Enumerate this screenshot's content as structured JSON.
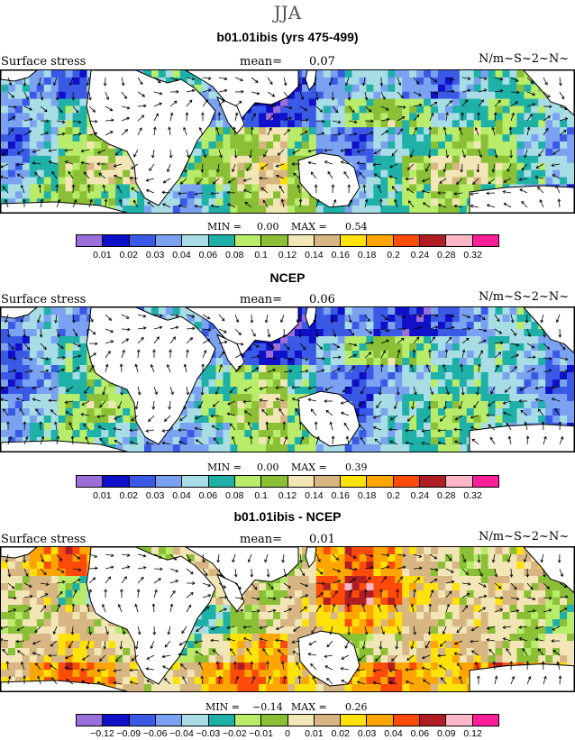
{
  "title": "JJA",
  "colorbar_colors": [
    "#9b6fd9",
    "#1010c8",
    "#3a5ae6",
    "#7aa2f0",
    "#a8dde6",
    "#1fb1a8",
    "#b8ec6a",
    "#8abf36",
    "#f2e6b6",
    "#d8b684",
    "#ffe20a",
    "#ffa500",
    "#ff4b0a",
    "#b01e24",
    "#ffb6c6",
    "#ff1e9a"
  ],
  "panels": [
    {
      "title": "b01.01ibis (yrs 475-499)",
      "left_label": "Surface stress",
      "mean_label": "mean=",
      "mean_value": "0.07",
      "units": "N/m~S~2~N~",
      "min_label": "MIN =",
      "min_value": "0.00",
      "max_label": "MAX =",
      "max_value": "0.54",
      "colorbar_ticks": [
        "0.01",
        "0.02",
        "0.03",
        "0.04",
        "0.06",
        "0.08",
        "0.1",
        "0.12",
        "0.14",
        "0.16",
        "0.18",
        "0.2",
        "0.24",
        "0.28",
        "0.32"
      ],
      "field_levels": [
        [
          4,
          3,
          2,
          3,
          4,
          5,
          5,
          4,
          2,
          1,
          2,
          3,
          4,
          4,
          3,
          2,
          4,
          5,
          6,
          5
        ],
        [
          3,
          4,
          5,
          6,
          7,
          6,
          5,
          3,
          2,
          1,
          2,
          4,
          6,
          7,
          6,
          4,
          5,
          6,
          5,
          4
        ],
        [
          2,
          4,
          6,
          7,
          6,
          4,
          4,
          6,
          7,
          8,
          6,
          3,
          2,
          4,
          5,
          6,
          7,
          6,
          4,
          3
        ],
        [
          3,
          5,
          7,
          8,
          8,
          6,
          6,
          7,
          8,
          9,
          7,
          4,
          3,
          5,
          7,
          8,
          8,
          7,
          5,
          4
        ],
        [
          4,
          6,
          7,
          6,
          5,
          4,
          3,
          5,
          7,
          8,
          7,
          5,
          4,
          5,
          6,
          7,
          6,
          5,
          3,
          2
        ]
      ]
    },
    {
      "title": "NCEP",
      "left_label": "Surface stress",
      "mean_label": "mean=",
      "mean_value": "0.06",
      "units": "N/m~S~2~N~",
      "min_label": "MIN =",
      "min_value": "0.00",
      "max_label": "MAX =",
      "max_value": "0.39",
      "colorbar_ticks": [
        "0.01",
        "0.02",
        "0.03",
        "0.04",
        "0.06",
        "0.08",
        "0.1",
        "0.12",
        "0.14",
        "0.16",
        "0.18",
        "0.2",
        "0.24",
        "0.28",
        "0.32"
      ],
      "field_levels": [
        [
          3,
          4,
          3,
          2,
          3,
          4,
          4,
          3,
          2,
          1,
          1,
          2,
          3,
          2,
          1,
          2,
          3,
          4,
          5,
          4
        ],
        [
          2,
          4,
          5,
          6,
          5,
          4,
          4,
          3,
          2,
          1,
          2,
          4,
          6,
          7,
          6,
          4,
          4,
          5,
          4,
          3
        ],
        [
          2,
          3,
          5,
          6,
          5,
          3,
          3,
          5,
          6,
          7,
          5,
          3,
          2,
          3,
          4,
          5,
          5,
          4,
          3,
          2
        ],
        [
          3,
          4,
          6,
          7,
          6,
          4,
          4,
          6,
          7,
          8,
          6,
          3,
          2,
          4,
          5,
          6,
          6,
          5,
          4,
          3
        ],
        [
          3,
          5,
          6,
          5,
          4,
          3,
          3,
          4,
          6,
          7,
          6,
          4,
          3,
          4,
          5,
          6,
          5,
          4,
          3,
          2
        ]
      ]
    },
    {
      "title": "b01.01ibis - NCEP",
      "left_label": "Surface stress",
      "mean_label": "mean=",
      "mean_value": "0.01",
      "units": "N/m~S~2~N~",
      "min_label": "MIN =",
      "min_value": "−0.14",
      "max_label": "MAX =",
      "max_value": "0.26",
      "colorbar_ticks": [
        "−0.12",
        "−0.09",
        "−0.06",
        "−0.04",
        "−0.03",
        "−0.02",
        "−0.01",
        "0",
        "0.01",
        "0.02",
        "0.03",
        "0.04",
        "0.06",
        "0.09",
        "0.12"
      ],
      "field_levels": [
        [
          9,
          11,
          12,
          10,
          8,
          7,
          8,
          9,
          8,
          6,
          8,
          11,
          12,
          11,
          9,
          8,
          7,
          8,
          9,
          8
        ],
        [
          8,
          9,
          6,
          4,
          7,
          8,
          7,
          8,
          9,
          7,
          9,
          12,
          13,
          12,
          10,
          9,
          8,
          9,
          8,
          7
        ],
        [
          7,
          8,
          9,
          8,
          7,
          6,
          4,
          5,
          7,
          8,
          9,
          10,
          11,
          10,
          9,
          8,
          9,
          8,
          7,
          6
        ],
        [
          8,
          9,
          10,
          9,
          8,
          7,
          6,
          8,
          10,
          11,
          9,
          8,
          7,
          8,
          9,
          10,
          9,
          8,
          7,
          8
        ],
        [
          9,
          11,
          12,
          11,
          9,
          8,
          9,
          11,
          12,
          11,
          10,
          9,
          11,
          12,
          11,
          10,
          11,
          12,
          11,
          9
        ]
      ]
    }
  ]
}
